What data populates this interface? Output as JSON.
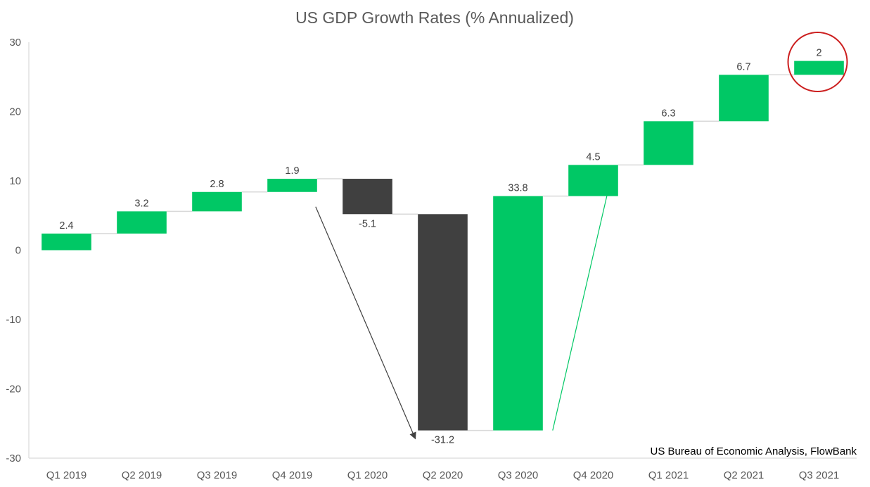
{
  "chart_data": {
    "type": "bar",
    "subtype": "waterfall",
    "title": "US GDP Growth Rates (% Annualized)",
    "xlabel": "",
    "ylabel": "",
    "categories": [
      "Q1 2019",
      "Q2 2019",
      "Q3 2019",
      "Q4 2019",
      "Q1 2020",
      "Q2 2020",
      "Q3 2020",
      "Q4 2020",
      "Q1 2021",
      "Q2 2021",
      "Q3 2021"
    ],
    "values": [
      2.4,
      3.2,
      2.8,
      1.9,
      -5.1,
      -31.2,
      33.8,
      4.5,
      6.3,
      6.7,
      2
    ],
    "data_labels": [
      "2.4",
      "3.2",
      "2.8",
      "1.9",
      "-5.1",
      "-31.2",
      "33.8",
      "4.5",
      "6.3",
      "6.7",
      "2"
    ],
    "ylim": [
      -30,
      30
    ],
    "yticks": [
      30,
      20,
      10,
      0,
      -10,
      -20,
      -30
    ],
    "grid": false,
    "legend": "none",
    "colors": {
      "increase": "#00C865",
      "decrease": "#404040",
      "connector": "#D9D9D9",
      "axis": "#D9D9D9",
      "highlight_circle": "#CC1F1F",
      "down_arrow": "#404040",
      "up_arrow": "#00C865"
    },
    "annotations": {
      "source": "US Bureau of Economic Analysis, FlowBank",
      "highlighted_category": "Q3 2021",
      "down_arrow": {
        "from_category": "Q4 2019",
        "to_category": "Q2 2020",
        "meaning": "decline"
      },
      "up_arrow": {
        "from_category": "Q3 2020",
        "to_category": "Q4 2020",
        "meaning": "recovery"
      }
    }
  }
}
